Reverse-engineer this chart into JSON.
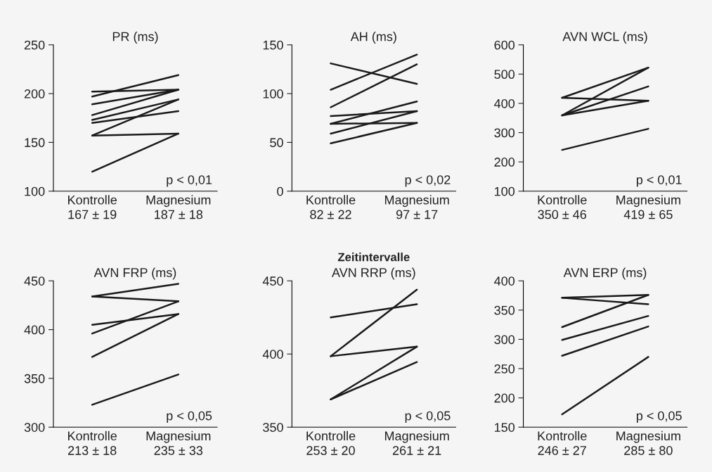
{
  "chart_data": [
    {
      "type": "line",
      "title": "PR (ms)",
      "categories": [
        "Kontrolle\n167 ± 19",
        "Magnesium\n187 ± 18"
      ],
      "ylim": [
        100,
        250
      ],
      "yticks": [
        100,
        150,
        200,
        250
      ],
      "annotations": [
        "p < 0,01"
      ],
      "series": [
        {
          "color": "#1a1a1a",
          "values": [
            197,
            219
          ]
        },
        {
          "color": "#1a1a1a",
          "values": [
            202,
            204
          ]
        },
        {
          "color": "#1a1a1a",
          "values": [
            189,
            204
          ]
        },
        {
          "color": "#1a1a1a",
          "values": [
            178,
            204
          ]
        },
        {
          "color": "#1a1a1a",
          "values": [
            173,
            194
          ]
        },
        {
          "color": "#1a1a1a",
          "values": [
            170,
            182
          ]
        },
        {
          "color": "#1a1a1a",
          "values": [
            157,
            194
          ]
        },
        {
          "color": "#1a1a1a",
          "values": [
            157,
            159
          ]
        },
        {
          "color": "#1a1a1a",
          "values": [
            120,
            159
          ]
        }
      ]
    },
    {
      "type": "line",
      "title": "AH (ms)",
      "categories": [
        "Kontrolle\n82 ± 22",
        "Magnesium\n97 ± 17"
      ],
      "ylim": [
        0,
        150
      ],
      "yticks": [
        0,
        50,
        100,
        150
      ],
      "annotations": [
        "p < 0,02",
        "Zeitintervalle"
      ],
      "series": [
        {
          "color": "#1a1a1a",
          "values": [
            131,
            110
          ]
        },
        {
          "color": "#1a1a1a",
          "values": [
            104,
            140
          ]
        },
        {
          "color": "#1a1a1a",
          "values": [
            86,
            130
          ]
        },
        {
          "color": "#1a1a1a",
          "values": [
            77,
            82
          ]
        },
        {
          "color": "#1a1a1a",
          "values": [
            69,
            92
          ]
        },
        {
          "color": "#1a1a1a",
          "values": [
            69,
            70
          ]
        },
        {
          "color": "#1a1a1a",
          "values": [
            59,
            82
          ]
        },
        {
          "color": "#1a1a1a",
          "values": [
            49,
            70
          ]
        }
      ]
    },
    {
      "type": "line",
      "title": "AVN WCL (ms)",
      "categories": [
        "Kontrolle\n350 ± 46",
        "Magnesium\n419 ± 65"
      ],
      "ylim": [
        100,
        600
      ],
      "yticks": [
        100,
        200,
        300,
        400,
        500,
        600
      ],
      "annotations": [
        "p < 0,01"
      ],
      "series": [
        {
          "color": "#1a1a1a",
          "values": [
            419,
            522
          ]
        },
        {
          "color": "#1a1a1a",
          "values": [
            419,
            409
          ]
        },
        {
          "color": "#1a1a1a",
          "values": [
            359,
            522
          ]
        },
        {
          "color": "#1a1a1a",
          "values": [
            359,
            458
          ]
        },
        {
          "color": "#1a1a1a",
          "values": [
            359,
            409
          ]
        },
        {
          "color": "#1a1a1a",
          "values": [
            241,
            313
          ]
        }
      ]
    },
    {
      "type": "line",
      "title": "AVN FRP (ms)",
      "categories": [
        "Kontrolle\n213 ± 18",
        "Magnesium\n235 ± 33"
      ],
      "ylim": [
        300,
        450
      ],
      "yticks": [
        300,
        350,
        400,
        450
      ],
      "annotations": [
        "p < 0,05"
      ],
      "series": [
        {
          "color": "#1a1a1a",
          "values": [
            434,
            447
          ]
        },
        {
          "color": "#1a1a1a",
          "values": [
            434,
            429
          ]
        },
        {
          "color": "#1a1a1a",
          "values": [
            405,
            416
          ]
        },
        {
          "color": "#1a1a1a",
          "values": [
            396,
            429
          ]
        },
        {
          "color": "#1a1a1a",
          "values": [
            372,
            416
          ]
        },
        {
          "color": "#1a1a1a",
          "values": [
            323,
            354
          ]
        }
      ]
    },
    {
      "type": "line",
      "title": "AVN RRP (ms)",
      "categories": [
        "Kontrolle\n253 ± 20",
        "Magnesium\n261 ± 21"
      ],
      "ylim": [
        350,
        450
      ],
      "yticks": [
        350,
        400,
        450
      ],
      "annotations": [
        "p < 0,05"
      ],
      "series": [
        {
          "color": "#1a1a1a",
          "values": [
            425,
            434
          ]
        },
        {
          "color": "#1a1a1a",
          "values": [
            398.5,
            444
          ]
        },
        {
          "color": "#1a1a1a",
          "values": [
            398.5,
            405
          ]
        },
        {
          "color": "#1a1a1a",
          "values": [
            369,
            405
          ]
        },
        {
          "color": "#1a1a1a",
          "values": [
            369,
            394.5
          ]
        }
      ]
    },
    {
      "type": "line",
      "title": "AVN ERP (ms)",
      "categories": [
        "Kontrolle\n246 ± 27",
        "Magnesium\n285 ± 80"
      ],
      "ylim": [
        150,
        400
      ],
      "yticks": [
        150,
        200,
        250,
        300,
        350,
        400
      ],
      "annotations": [
        "p < 0,05"
      ],
      "series": [
        {
          "color": "#1a1a1a",
          "values": [
            371,
            376
          ]
        },
        {
          "color": "#1a1a1a",
          "values": [
            371,
            360
          ]
        },
        {
          "color": "#1a1a1a",
          "values": [
            321,
            376
          ]
        },
        {
          "color": "#1a1a1a",
          "values": [
            299,
            340
          ]
        },
        {
          "color": "#1a1a1a",
          "values": [
            272,
            322
          ]
        },
        {
          "color": "#1a1a1a",
          "values": [
            172,
            270
          ]
        }
      ]
    }
  ]
}
